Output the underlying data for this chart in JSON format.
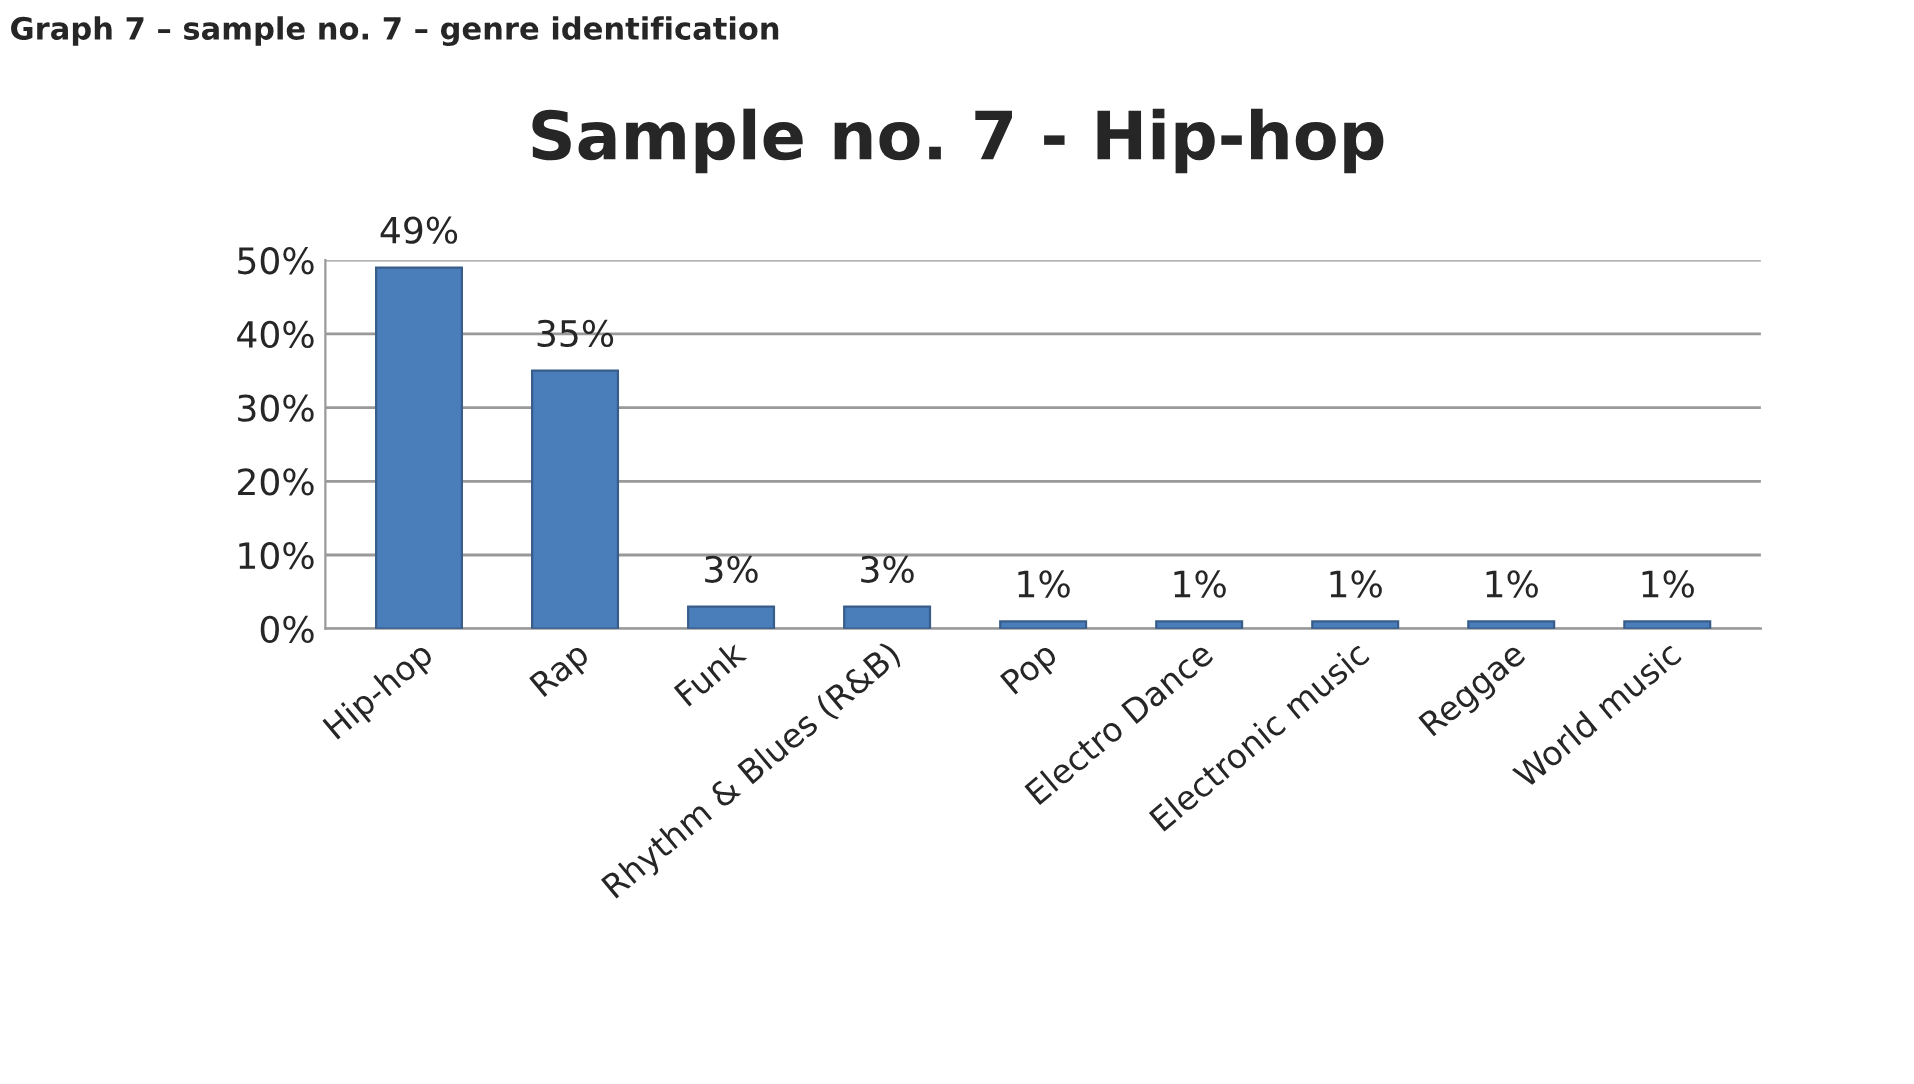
{
  "chart_data": {
    "type": "bar",
    "title": "Sample no. 7 - Hip-hop",
    "annotations": [
      "Graph 7 – sample no. 7 – genre identification"
    ],
    "categories": [
      "Hip-hop",
      "Rap",
      "Funk",
      "Rhythm & Blues (R&B)",
      "Pop",
      "Electro Dance",
      "Electronic music",
      "Reggae",
      "World music"
    ],
    "values": [
      49,
      35,
      3,
      3,
      1,
      1,
      1,
      1,
      1
    ],
    "value_labels": [
      "49%",
      "35%",
      "3%",
      "3%",
      "1%",
      "1%",
      "1%",
      "1%",
      "1%"
    ],
    "color": "#4a7ebb",
    "ylim": [
      0,
      50
    ],
    "yticks": [
      {
        "value": 0,
        "label": "0%"
      },
      {
        "value": 10,
        "label": "10%"
      },
      {
        "value": 20,
        "label": "20%"
      },
      {
        "value": 30,
        "label": "30%"
      },
      {
        "value": 40,
        "label": "40%"
      },
      {
        "value": 50,
        "label": "50%"
      }
    ],
    "grid": "y",
    "legend": false
  }
}
